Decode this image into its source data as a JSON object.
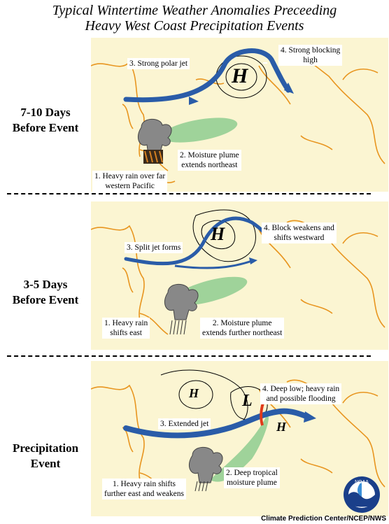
{
  "title": {
    "line1": "Typical Wintertime Weather Anomalies Preceeding",
    "line2": "Heavy West Coast Precipitation Events"
  },
  "panels": [
    {
      "side_line1": "7-10 Days",
      "side_line2": "Before Event",
      "labels": {
        "jet": "3. Strong polar jet",
        "block_line1": "4. Strong blocking",
        "block_line2": "high",
        "plume_line1": "2. Moisture plume",
        "plume_line2": "extends northeast",
        "rain_line1": "1. Heavy rain over far",
        "rain_line2": "western Pacific"
      },
      "pressure": [
        "H"
      ]
    },
    {
      "side_line1": "3-5 Days",
      "side_line2": "Before Event",
      "labels": {
        "jet": "3. Split jet forms",
        "block_line1": "4. Block weakens and",
        "block_line2": "shifts westward",
        "plume_line1": "2. Moisture plume",
        "plume_line2": "extends further northeast",
        "rain_line1": "1. Heavy rain",
        "rain_line2": "shifts east"
      },
      "pressure": [
        "H"
      ]
    },
    {
      "side_line1": "Precipitation",
      "side_line2": "Event",
      "labels": {
        "jet": "3. Extended jet",
        "block_line1": "4. Deep low; heavy rain",
        "block_line2": "and possible flooding",
        "plume_line1": "2. Deep tropical",
        "plume_line2": "moisture plume",
        "rain_line1": "1. Heavy rain shifts",
        "rain_line2": "further east and weakens"
      },
      "pressure": [
        "H",
        "L",
        "H"
      ]
    }
  ],
  "logo": "NOAA",
  "credit": "Climate Prediction Center/NCEP/NWS",
  "colors": {
    "background": "#fbf5d2",
    "coast": "#e8951f",
    "jet": "#2a5ca8",
    "plume": "#9fd39a",
    "front": "#e03a1a"
  }
}
